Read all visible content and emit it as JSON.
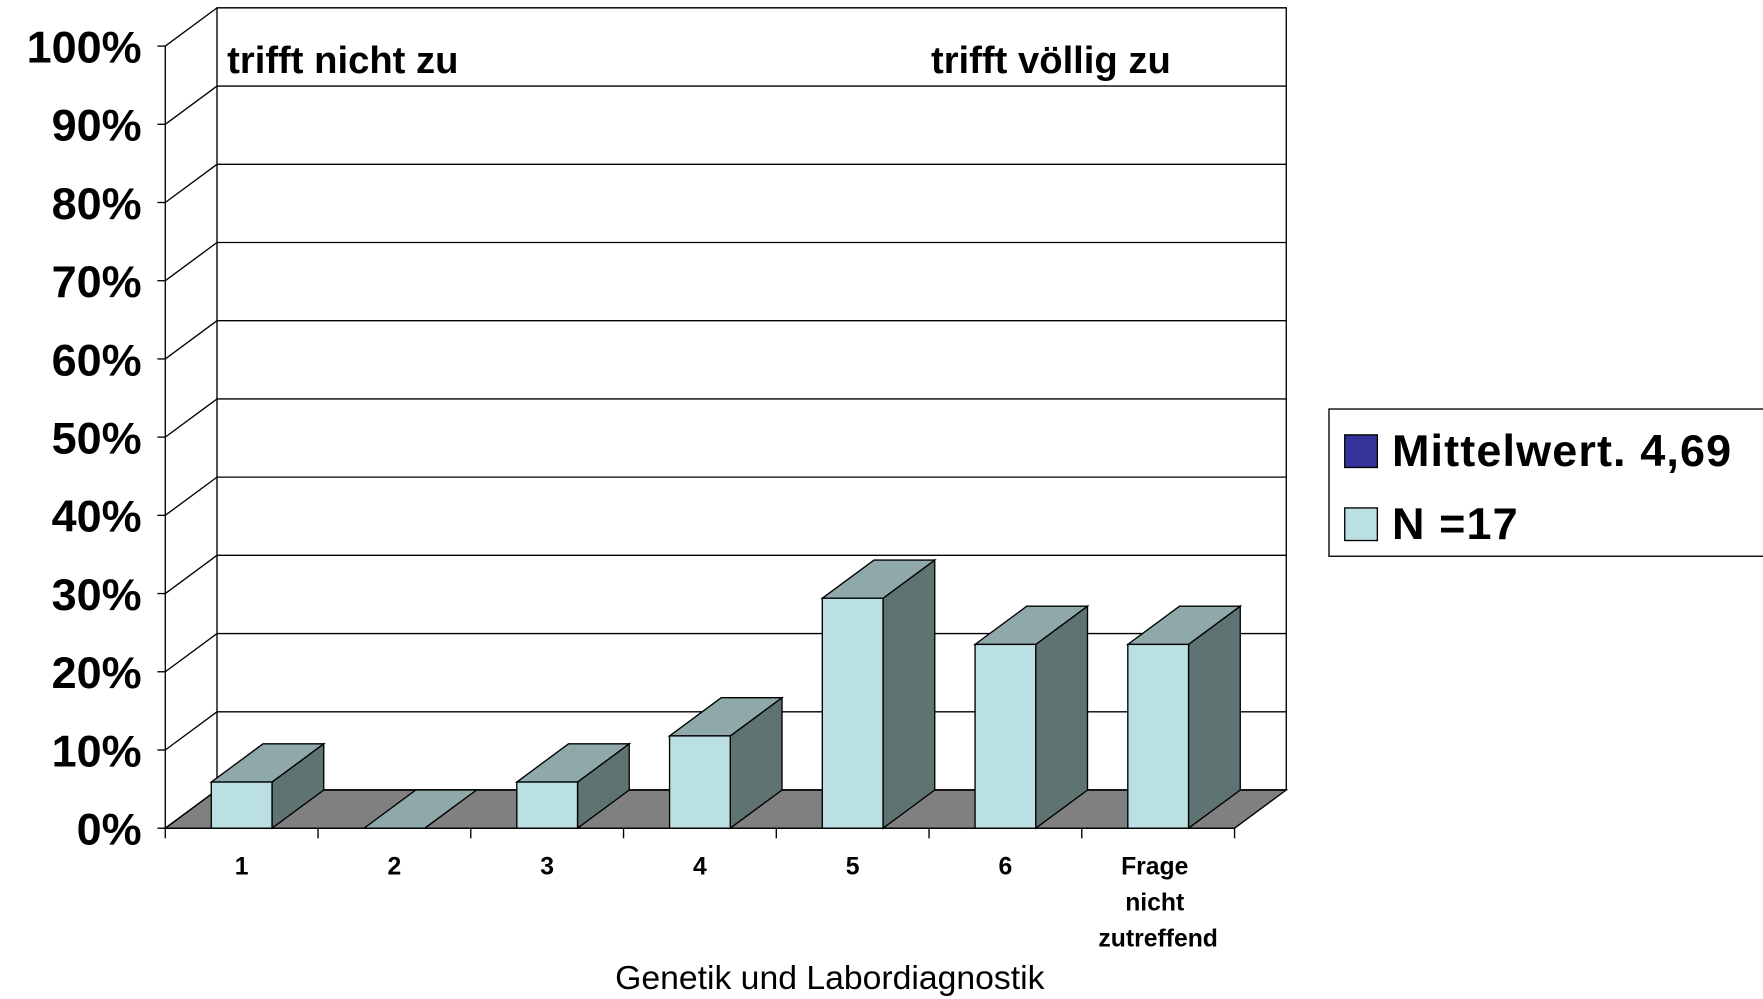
{
  "chart_data": {
    "type": "bar3d",
    "categories": [
      "1",
      "2",
      "3",
      "4",
      "5",
      "6",
      "Frage nicht zutreffend"
    ],
    "series": [
      {
        "name": "Mittelwert. 4,69",
        "color": "#333399",
        "values": [
          null,
          null,
          null,
          null,
          null,
          null,
          null
        ]
      },
      {
        "name": "N =17",
        "color": "#bbe0e3",
        "values": [
          5.9,
          0,
          5.9,
          11.8,
          29.4,
          23.5,
          23.5
        ]
      }
    ],
    "annotations": [
      "trifft nicht zu",
      "trifft völlig zu"
    ],
    "x_label": "Genetik und Labordiagnostik",
    "ylim": [
      0,
      100
    ],
    "yticks": [
      {
        "value": 0,
        "label": "0%"
      },
      {
        "value": 10,
        "label": "10%"
      },
      {
        "value": 20,
        "label": "20%"
      },
      {
        "value": 30,
        "label": "30%"
      },
      {
        "value": 40,
        "label": "40%"
      },
      {
        "value": 50,
        "label": "50%"
      },
      {
        "value": 60,
        "label": "60%"
      },
      {
        "value": 70,
        "label": "70%"
      },
      {
        "value": 80,
        "label": "80%"
      },
      {
        "value": 90,
        "label": "90%"
      },
      {
        "value": 100,
        "label": "100%"
      }
    ],
    "grid": true,
    "legend": "right"
  }
}
